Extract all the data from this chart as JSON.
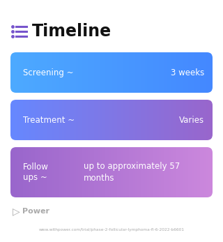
{
  "title": "Timeline",
  "title_fontsize": 17,
  "title_fontweight": "bold",
  "title_color": "#111111",
  "icon_color": "#7755cc",
  "background_color": "#ffffff",
  "rows": [
    {
      "left_text": "Screening ~",
      "right_text": "3 weeks",
      "grad_left": "#4daaff",
      "grad_right": "#4488ff",
      "text_color": "#ffffff",
      "multiline": false
    },
    {
      "left_text": "Treatment ~",
      "right_text": "Varies",
      "grad_left": "#6688ff",
      "grad_right": "#9966cc",
      "text_color": "#ffffff",
      "multiline": false
    },
    {
      "left_text": "Follow\nups ~",
      "right_text": "up to approximately 57\nmonths",
      "grad_left": "#9966cc",
      "grad_right": "#cc88dd",
      "text_color": "#ffffff",
      "multiline": true
    }
  ],
  "footer_text": "Power",
  "footer_url": "www.withpower.com/trial/phase-2-follicular-lymphoma-fl-6-2022-b6601",
  "footer_color": "#aaaaaa"
}
